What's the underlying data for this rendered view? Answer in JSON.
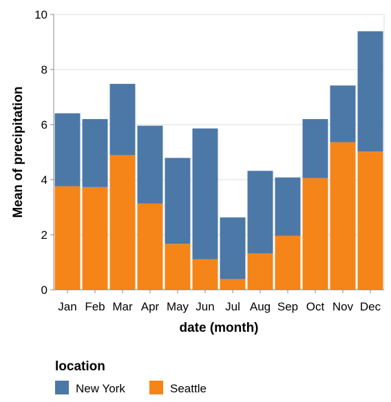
{
  "chart_data": {
    "type": "bar",
    "stacked": true,
    "categories": [
      "Jan",
      "Feb",
      "Mar",
      "Apr",
      "May",
      "Jun",
      "Jul",
      "Aug",
      "Sep",
      "Oct",
      "Nov",
      "Dec"
    ],
    "series": [
      {
        "name": "Seattle",
        "color": "#f58518",
        "values": [
          3.76,
          3.73,
          4.89,
          3.13,
          1.67,
          1.11,
          0.39,
          1.32,
          1.96,
          4.06,
          5.36,
          5.02
        ]
      },
      {
        "name": "New York",
        "color": "#4c78a8",
        "values": [
          2.65,
          2.47,
          2.59,
          2.83,
          3.12,
          4.75,
          2.24,
          3.0,
          2.12,
          2.14,
          2.06,
          4.37
        ]
      }
    ],
    "xlabel": "date (month)",
    "ylabel": "Mean of precipitation",
    "ylim": [
      0,
      10
    ],
    "yticks": [
      "0",
      "2",
      "4",
      "6",
      "8",
      "10"
    ],
    "grid": true,
    "legend": {
      "title": "location",
      "placement": "bottom-left",
      "entries": [
        {
          "label": "New York",
          "color": "#4c78a8"
        },
        {
          "label": "Seattle",
          "color": "#f58518"
        }
      ]
    }
  }
}
